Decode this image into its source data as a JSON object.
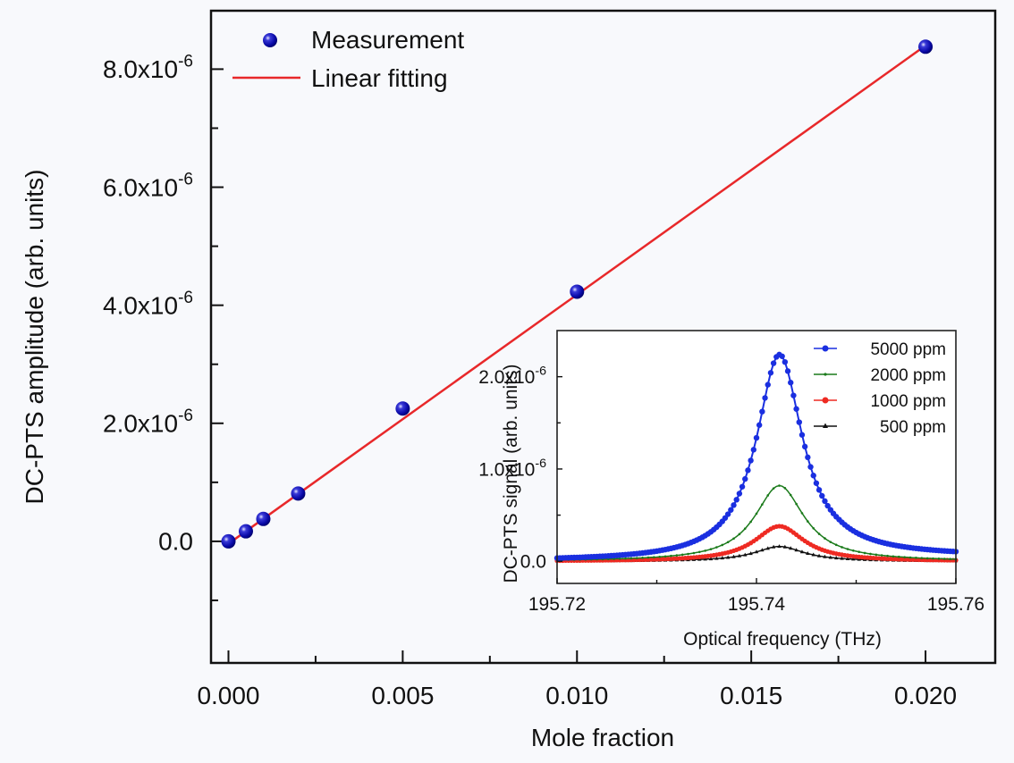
{
  "chart_data": [
    {
      "type": "scatter",
      "title": "",
      "xlabel": "Mole fraction",
      "ylabel": "DC-PTS amplitude (arb. units)",
      "xlim": [
        -0.0005,
        0.022
      ],
      "ylim": [
        -2.06e-06,
        8.99e-06
      ],
      "grid": false,
      "x_ticks": [
        0.0,
        0.005,
        0.01,
        0.015,
        0.02
      ],
      "x_tick_labels": [
        "0.000",
        "0.005",
        "0.010",
        "0.015",
        "0.020"
      ],
      "x_minor_ticks": [
        0.0025,
        0.0075,
        0.0125,
        0.0175
      ],
      "y_ticks": [
        0,
        2e-06,
        4e-06,
        6e-06,
        8e-06
      ],
      "y_tick_labels": [
        {
          "mantissa": "0.0",
          "exp": ""
        },
        {
          "mantissa": "2.0x10",
          "exp": "-6"
        },
        {
          "mantissa": "4.0x10",
          "exp": "-6"
        },
        {
          "mantissa": "6.0x10",
          "exp": "-6"
        },
        {
          "mantissa": "8.0x10",
          "exp": "-6"
        }
      ],
      "y_minor_ticks": [
        -1e-06,
        1e-06,
        3e-06,
        5e-06,
        7e-06
      ],
      "legend_position": "top-left",
      "series": [
        {
          "name": "Measurement",
          "kind": "scatter",
          "color": "#0a0aa8",
          "x": [
            0.0,
            0.0005,
            0.001,
            0.002,
            0.005,
            0.01,
            0.02
          ],
          "y": [
            0.0,
            1.7e-07,
            3.8e-07,
            8.1e-07,
            2.25e-06,
            4.23e-06,
            8.38e-06
          ]
        },
        {
          "name": "Linear fitting",
          "kind": "line",
          "color": "#e8282a",
          "x": [
            0.0,
            0.02
          ],
          "y": [
            -4e-08,
            8.4e-06
          ]
        }
      ]
    },
    {
      "type": "line",
      "title": "",
      "xlabel": "Optical frequency (THz)",
      "ylabel": "DC-PTS signal (arb. units)",
      "xlim": [
        195.72,
        195.76
      ],
      "ylim": [
        -2.4e-07,
        2.5e-06
      ],
      "grid": false,
      "x_ticks": [
        195.72,
        195.74,
        195.76
      ],
      "x_tick_labels": [
        "195.72",
        "195.74",
        "195.76"
      ],
      "x_minor_ticks": [
        195.73,
        195.75
      ],
      "y_ticks": [
        0,
        1e-06,
        2e-06
      ],
      "y_tick_labels": [
        {
          "mantissa": "0.0",
          "exp": ""
        },
        {
          "mantissa": "1.0x10",
          "exp": "-6"
        },
        {
          "mantissa": "2.0x10",
          "exp": "-6"
        }
      ],
      "y_minor_ticks": [
        5e-07,
        1.5e-06
      ],
      "legend_position": "top-right",
      "peak_center": 195.7423,
      "series": [
        {
          "name": "5000 ppm",
          "color": "#1a2fe0",
          "marker": "circle",
          "peak": 2.24e-06,
          "hwhm": 0.0028,
          "offset": 5e-08
        },
        {
          "name": "2000 ppm",
          "color": "#1a7a1a",
          "marker": "dot",
          "peak": 8.2e-07,
          "hwhm": 0.003,
          "offset": 0.0
        },
        {
          "name": "1000 ppm",
          "color": "#ee2a22",
          "marker": "circle",
          "peak": 3.8e-07,
          "hwhm": 0.003,
          "offset": 0.0
        },
        {
          "name": "500 ppm",
          "color": "#111111",
          "marker": "triangle",
          "peak": 1.6e-07,
          "hwhm": 0.003,
          "offset": 0.0
        }
      ]
    }
  ]
}
